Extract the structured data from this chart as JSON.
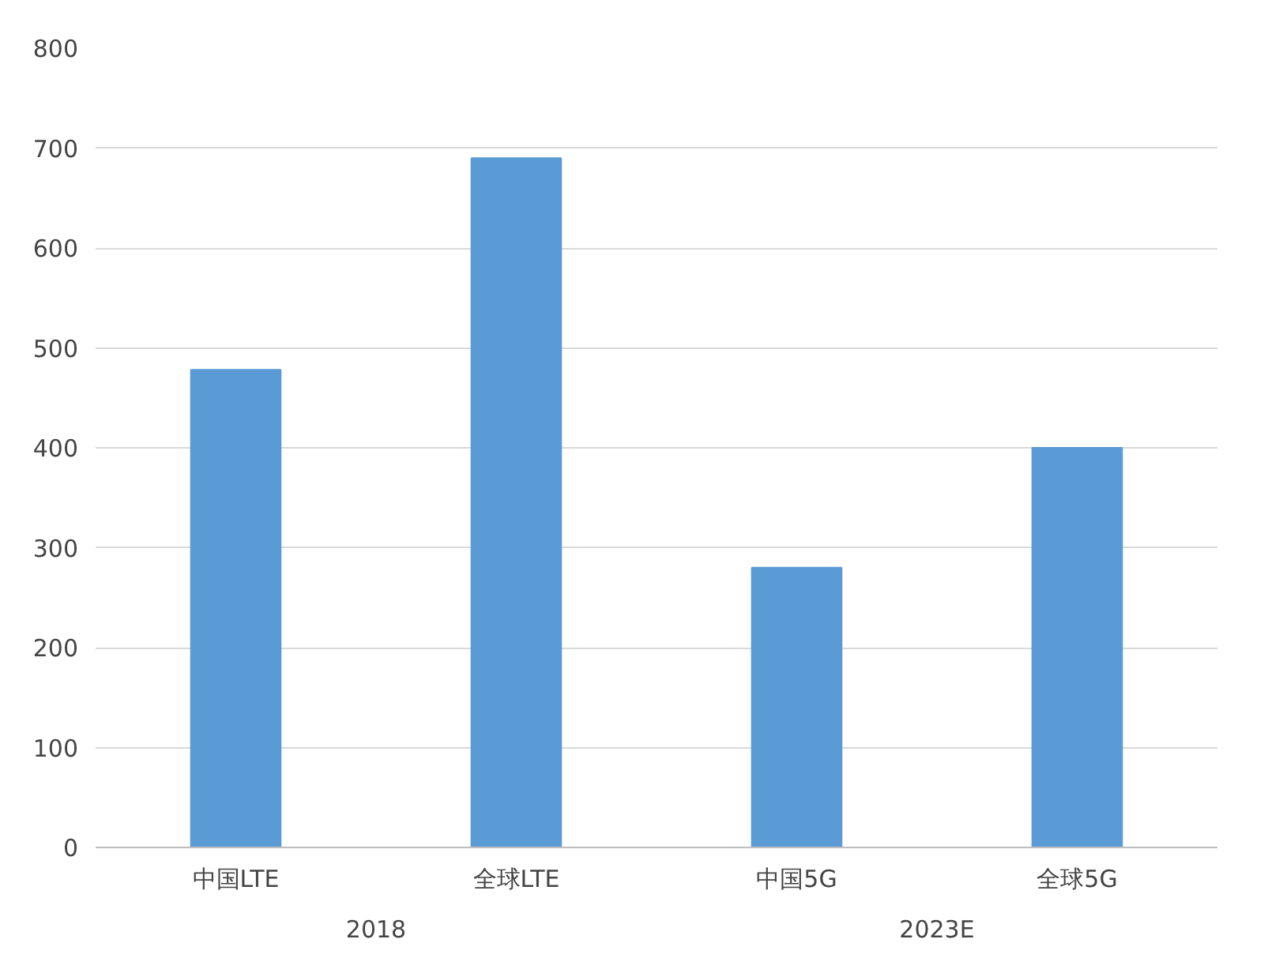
{
  "chart_data": {
    "type": "bar",
    "categories": [
      "中国LTE",
      "全球LTE",
      "中国5G",
      "全球5G"
    ],
    "values": [
      478,
      690,
      280,
      400
    ],
    "color": "#5b9bd5",
    "ylim": [
      0,
      800
    ],
    "yticks": [
      0,
      100,
      200,
      300,
      400,
      500,
      600,
      700,
      800
    ],
    "grid": "y",
    "annotations": [
      "2018",
      "2023E"
    ]
  }
}
